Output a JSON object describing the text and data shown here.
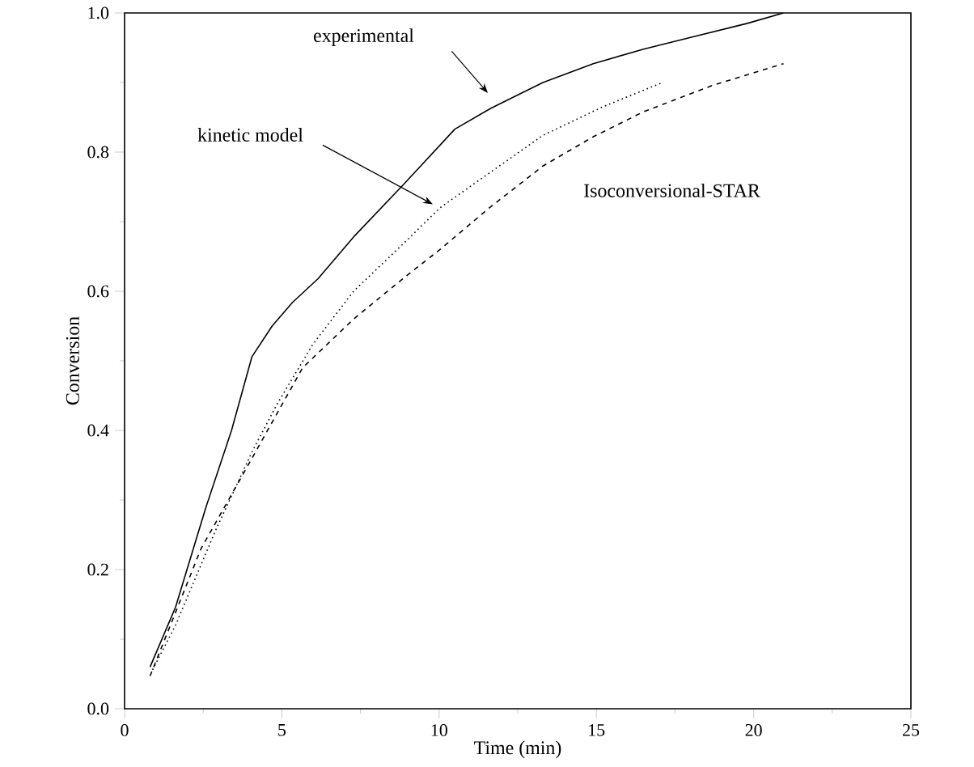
{
  "chart_data": {
    "type": "line",
    "xlabel": "Time (min)",
    "ylabel": "Conversion",
    "xlim": [
      0,
      25
    ],
    "ylim": [
      0,
      1
    ],
    "xticks": [
      0,
      5,
      10,
      15,
      20,
      25
    ],
    "yticks": [
      {
        "value": 0,
        "label": "0.0"
      },
      {
        "value": 0.2,
        "label": "0.2"
      },
      {
        "value": 0.4,
        "label": "0.4"
      },
      {
        "value": 0.6,
        "label": "0.6"
      },
      {
        "value": 0.8,
        "label": "0.8"
      },
      {
        "value": 1.0,
        "label": "1.0"
      }
    ],
    "annotations": [
      "experimental",
      "kinetic model",
      "Isoconversional-STAR"
    ],
    "grid": false,
    "legend": false,
    "marker": "none",
    "series": [
      {
        "color": "#000000",
        "line_style": "solid",
        "x": [
          0.81,
          1.62,
          2.59,
          3.4,
          4.05,
          4.69,
          5.34,
          6.15,
          7.28,
          8.9,
          10.5,
          11.65,
          13.3,
          14.9,
          16.5,
          18.1,
          19.8,
          20.95
        ],
        "values": [
          0.06,
          0.146,
          0.29,
          0.4,
          0.506,
          0.55,
          0.584,
          0.618,
          0.678,
          0.755,
          0.833,
          0.863,
          0.9,
          0.927,
          0.948,
          0.966,
          0.985,
          1.0
        ]
      },
      {
        "color": "#000000",
        "line_style": "dotted",
        "x": [
          0.89,
          1.62,
          2.9,
          4.05,
          4.85,
          5.99,
          7.28,
          8.9,
          10.03,
          11.6,
          13.3,
          15.2,
          17.05
        ],
        "values": [
          0.056,
          0.12,
          0.257,
          0.369,
          0.438,
          0.524,
          0.6,
          0.67,
          0.72,
          0.77,
          0.824,
          0.865,
          0.899
        ]
      },
      {
        "color": "#000000",
        "line_style": "dashed",
        "x": [
          0.81,
          2.43,
          4.05,
          5.66,
          7.28,
          8.9,
          10.03,
          11.6,
          13.3,
          14.9,
          16.5,
          18.7,
          20.95
        ],
        "values": [
          0.047,
          0.23,
          0.36,
          0.49,
          0.56,
          0.62,
          0.66,
          0.72,
          0.78,
          0.822,
          0.858,
          0.896,
          0.927
        ]
      }
    ]
  }
}
